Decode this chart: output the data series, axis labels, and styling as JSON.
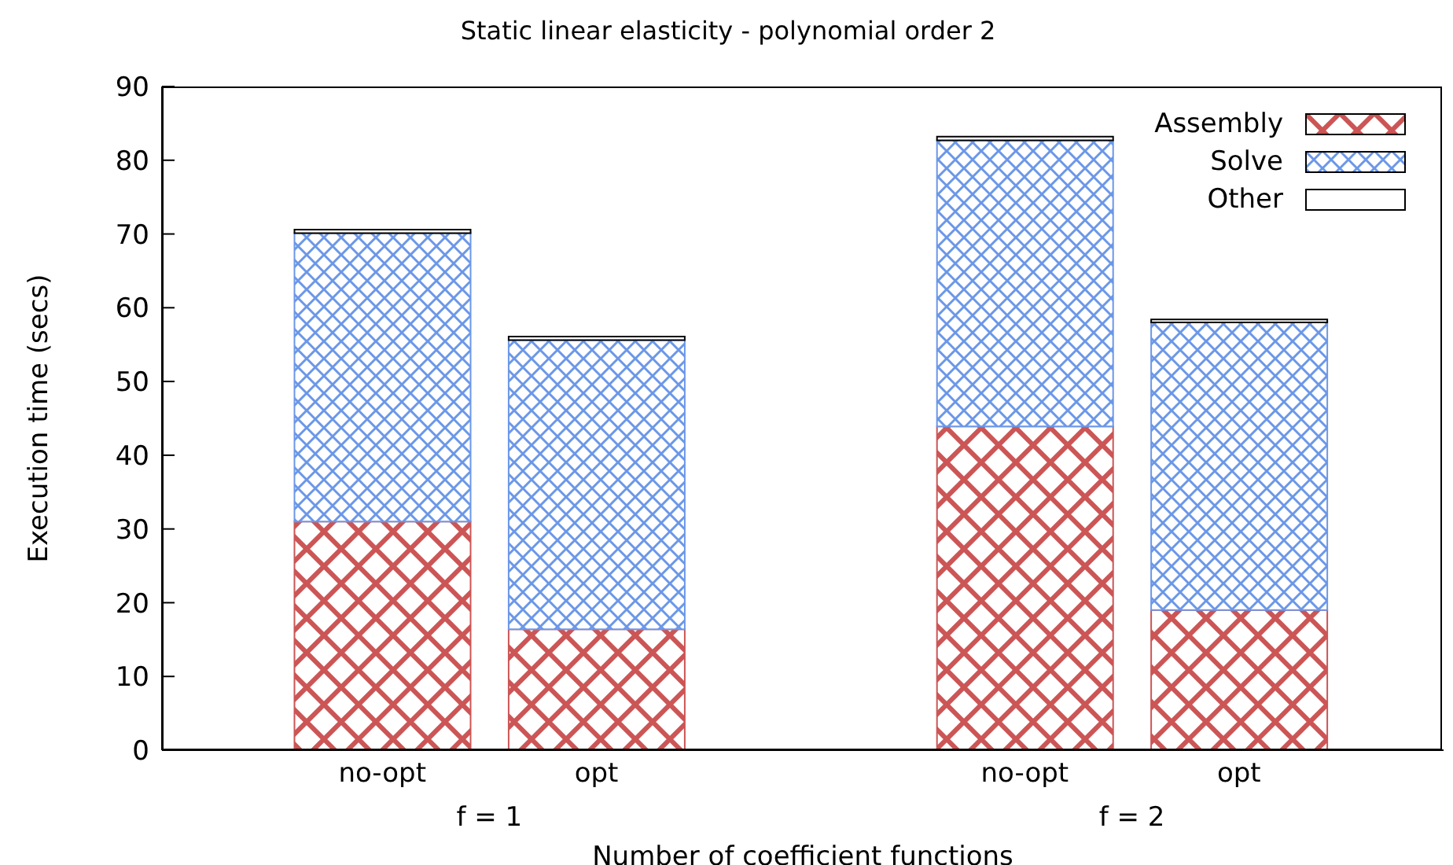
{
  "chart_data": {
    "type": "bar",
    "title": "Static linear elasticity - polynomial order 2",
    "xlabel": "Number of coefficient functions",
    "ylabel": "Execution time (secs)",
    "categories": [
      "no-opt",
      "opt",
      null,
      "no-opt",
      "opt"
    ],
    "series": [
      {
        "name": "Assembly",
        "color": "#cc5555",
        "values": [
          31,
          16.4,
          null,
          43.9,
          19
        ]
      },
      {
        "name": "Solve",
        "color": "#6b97e8",
        "values": [
          39.1,
          39.2,
          null,
          38.8,
          39
        ]
      },
      {
        "name": "Other",
        "color": "#ffffff",
        "values": [
          0.5,
          0.5,
          null,
          0.5,
          0.4
        ]
      }
    ],
    "stacked": true,
    "ylim": [
      0,
      90
    ],
    "yticks": [
      0,
      10,
      20,
      30,
      40,
      50,
      60,
      70,
      80,
      90
    ],
    "grid": false,
    "legend": "top right",
    "annotations": [
      "f = 1",
      "f = 2"
    ]
  }
}
